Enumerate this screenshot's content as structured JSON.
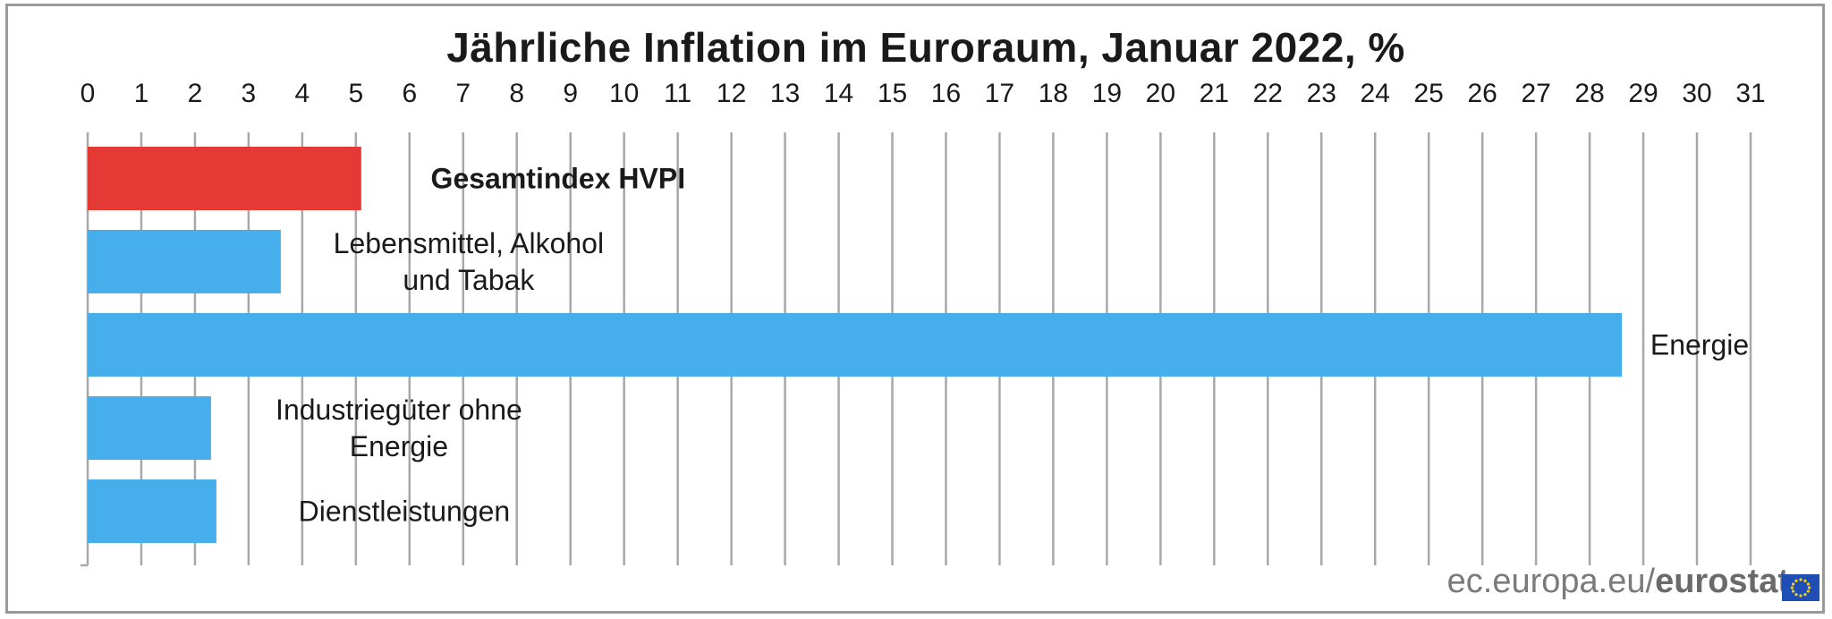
{
  "chart_data": {
    "type": "bar",
    "orientation": "horizontal",
    "title": "Jährliche Inflation im Euroraum, Januar 2022, %",
    "xlim": [
      0,
      31
    ],
    "x_ticks": [
      0,
      1,
      2,
      3,
      4,
      5,
      6,
      7,
      8,
      9,
      10,
      11,
      12,
      13,
      14,
      15,
      16,
      17,
      18,
      19,
      20,
      21,
      22,
      23,
      24,
      25,
      26,
      27,
      28,
      29,
      30,
      31
    ],
    "axis_position": "top",
    "grid": true,
    "categories": [
      "Gesamtindex HVPI",
      "Lebensmittel, Alkohol und Tabak",
      "Energie",
      "Industriegüter ohne Energie",
      "Dienstleistungen"
    ],
    "label_lines": [
      [
        "Gesamtindex HVPI"
      ],
      [
        "Lebensmittel, Alkohol",
        "und Tabak"
      ],
      [
        "Energie"
      ],
      [
        "Industriegüter ohne",
        "Energie"
      ],
      [
        "Dienstleistungen"
      ]
    ],
    "values": [
      5.1,
      3.6,
      28.6,
      2.3,
      2.4
    ],
    "colors": [
      "#e53935",
      "#46aeea",
      "#46aeea",
      "#46aeea",
      "#46aeea"
    ],
    "highlight_category": "Gesamtindex HVPI"
  },
  "footer": {
    "source_prefix": "ec.europa.eu/",
    "source_brand": "eurostat"
  }
}
